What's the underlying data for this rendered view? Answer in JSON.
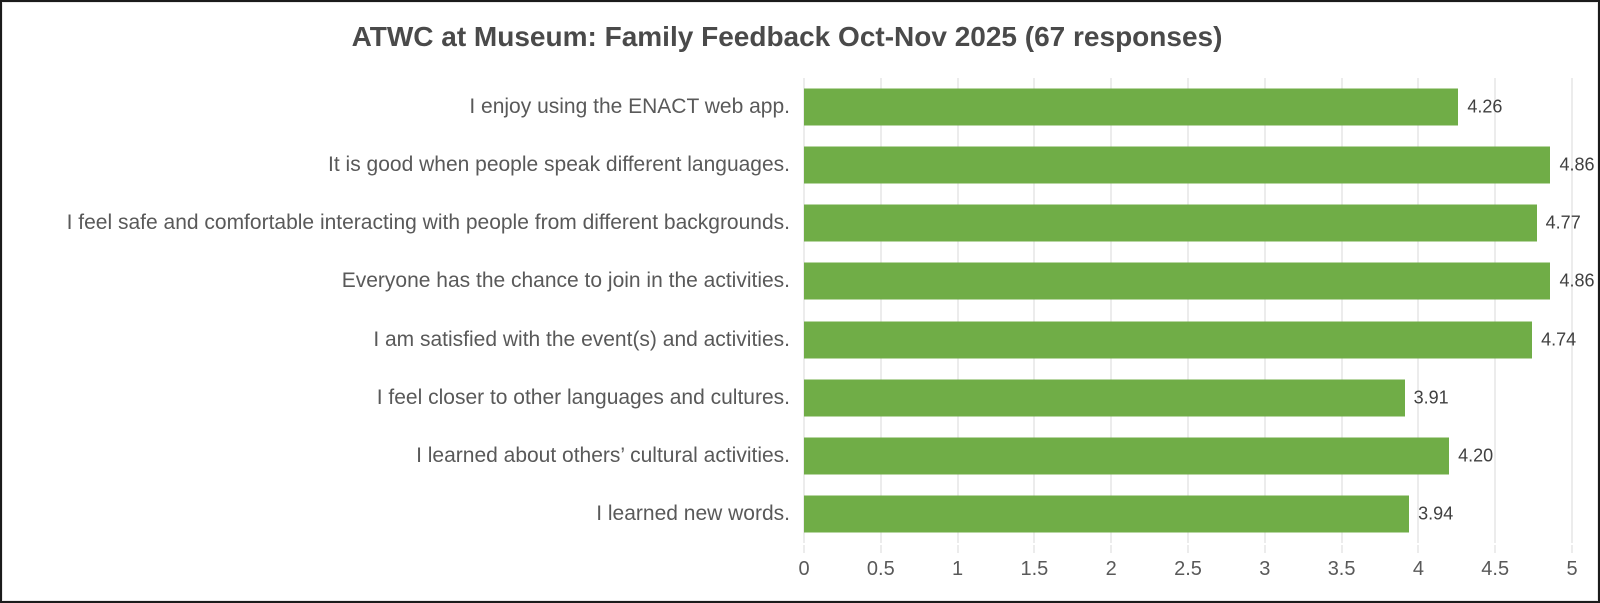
{
  "title": "ATWC at Museum: Family Feedback Oct-Nov 2025 (67 responses)",
  "chart_data": {
    "type": "bar",
    "orientation": "horizontal",
    "title": "ATWC at Museum: Family Feedback Oct-Nov 2025 (67 responses)",
    "categories": [
      "I enjoy using the ENACT web app.",
      "It is good when people speak different languages.",
      "I feel safe and comfortable interacting with people from different backgrounds.",
      "Everyone has the chance to join in the activities.",
      "I am satisfied with the event(s) and activities.",
      "I feel closer to other languages and cultures.",
      "I learned about others’ cultural activities.",
      "I learned new words."
    ],
    "values": [
      4.26,
      4.86,
      4.77,
      4.86,
      4.74,
      3.91,
      4.2,
      3.94
    ],
    "value_labels": [
      "4.26",
      "4.86",
      "4.77",
      "4.86",
      "4.74",
      "3.91",
      "4.20",
      "3.94"
    ],
    "xlabel": "",
    "ylabel": "",
    "xlim": [
      0,
      5
    ],
    "x_ticks": [
      "0",
      "0.5",
      "1",
      "1.5",
      "2",
      "2.5",
      "3",
      "3.5",
      "4",
      "4.5",
      "5"
    ],
    "grid": true,
    "legend": "none",
    "bar_color": "#70ad47",
    "gridline_color": "#d9d9d9",
    "category_label_color": "#595959",
    "value_label_color": "#404040",
    "title_color": "#4a4a4a"
  }
}
